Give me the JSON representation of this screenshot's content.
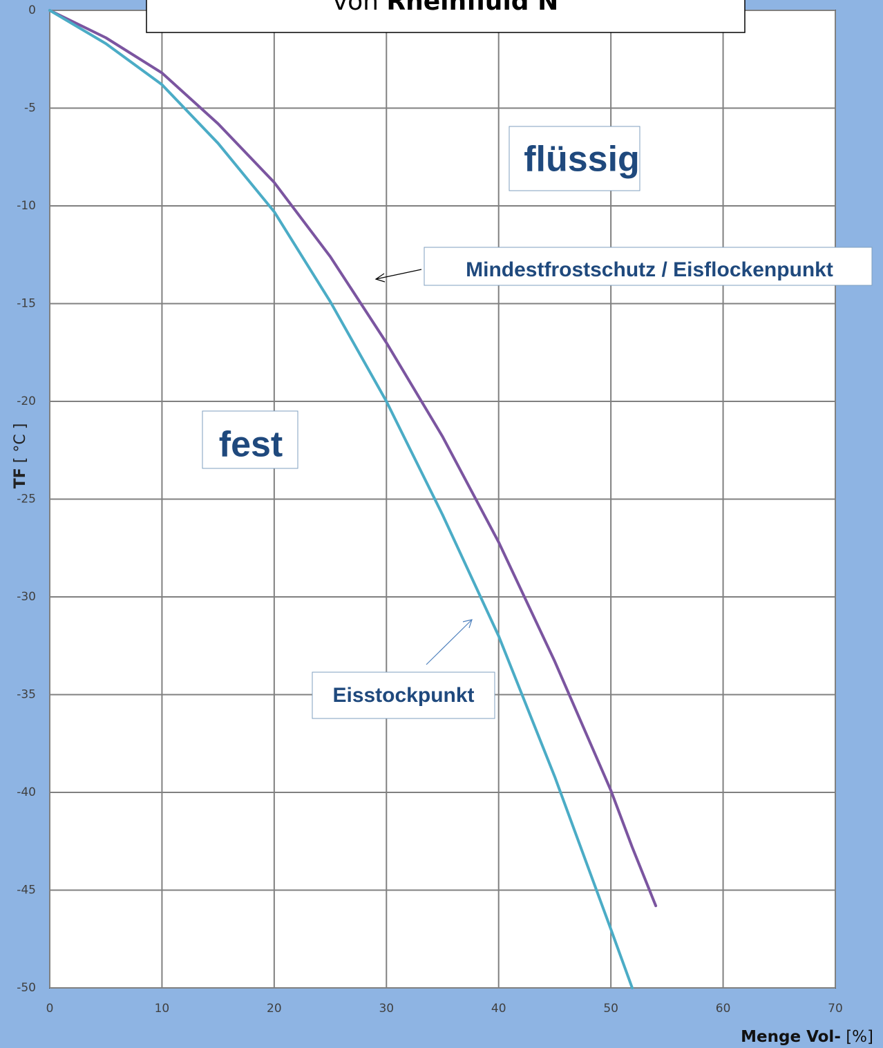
{
  "chart_data": {
    "type": "line",
    "title": [
      "von",
      "Rheinfluid N"
    ],
    "xlabel": [
      "Menge  Vol-",
      "[%]"
    ],
    "ylabel": [
      "TF",
      "[ °C ]"
    ],
    "annotations": [
      "flüssig",
      "fest"
    ],
    "x": [
      0,
      5,
      10,
      15,
      20,
      25,
      30,
      35,
      40,
      45,
      50,
      51.9,
      54
    ],
    "series": [
      {
        "name": "Mindestfrostschutz / Eisflockenpunkt",
        "color": "#7b55a0",
        "values": [
          0,
          -1.4,
          -3.2,
          -5.8,
          -8.8,
          -12.6,
          -17.0,
          -21.8,
          -27.2,
          -33.3,
          -39.9,
          -42.8,
          -45.8
        ]
      },
      {
        "name": "Eisstockpunkt",
        "color": "#4bacc6",
        "values": [
          0,
          -1.7,
          -3.8,
          -6.8,
          -10.3,
          -14.9,
          -20.0,
          -25.8,
          -32.0,
          -39.2,
          -47.0,
          -50.0,
          null
        ]
      }
    ],
    "xlim": [
      0,
      70
    ],
    "xticks": [
      0,
      10,
      20,
      30,
      40,
      50,
      60,
      70
    ],
    "ylim": [
      -50,
      0
    ],
    "yticks": [
      0,
      -5,
      -10,
      -15,
      -20,
      -25,
      -30,
      -35,
      -40,
      -45,
      -50
    ],
    "grid": true
  }
}
